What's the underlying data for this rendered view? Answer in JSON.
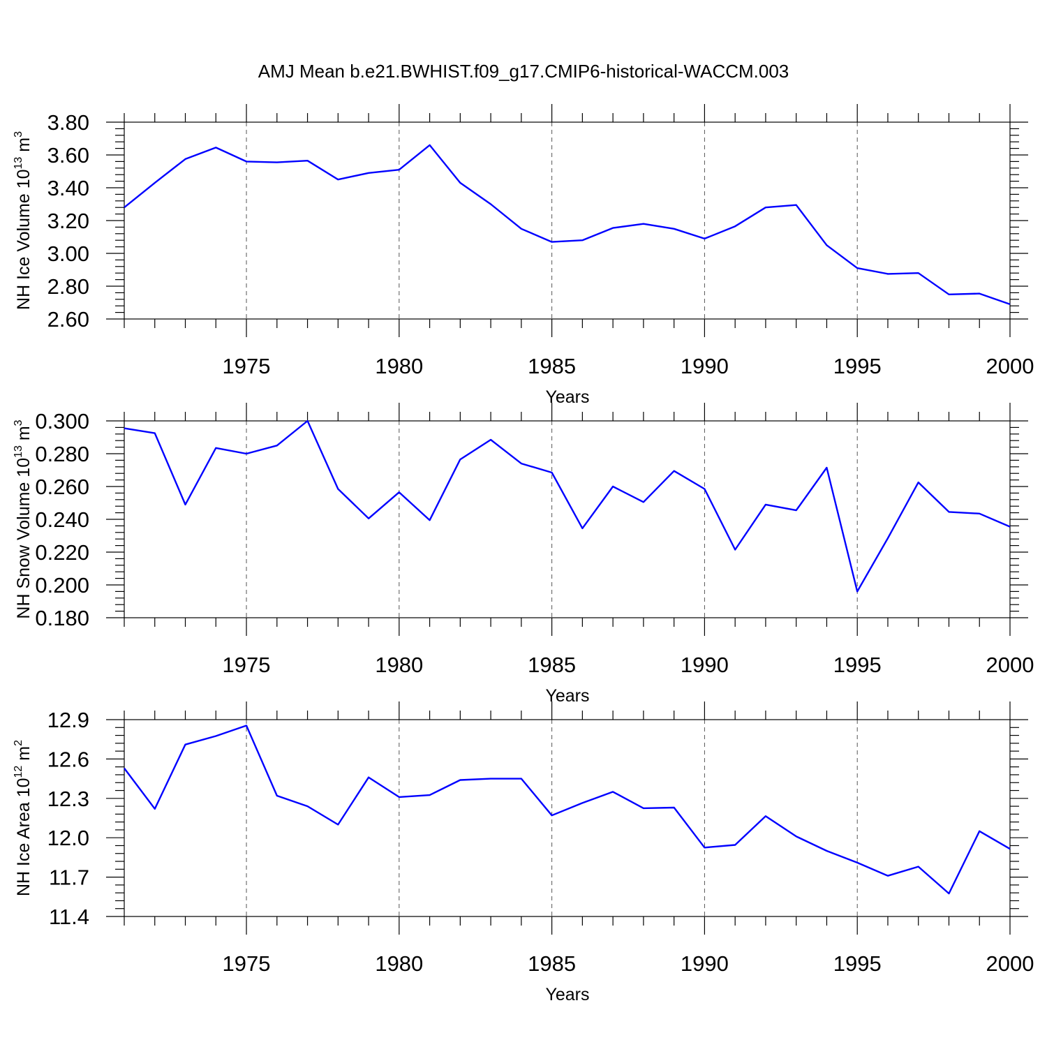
{
  "title": "AMJ Mean b.e21.BWHIST.f09_g17.CMIP6-historical-WACCM.003",
  "colors": {
    "line": "#0000ff",
    "axis": "#000000",
    "grid": "#555555"
  },
  "chart_data": [
    {
      "type": "line",
      "name": "NH Ice Volume",
      "ylabel": "NH Ice Volume 10",
      "ylabel_exp": "13",
      "ylabel_unit": "m",
      "ylabel_unit_exp": "3",
      "xlabel": "Years",
      "xlim": [
        1971,
        2000
      ],
      "ylim": [
        2.6,
        3.8
      ],
      "yticks": [
        2.6,
        2.8,
        3.0,
        3.2,
        3.4,
        3.6,
        3.8
      ],
      "ytick_labels": [
        "2.60",
        "2.80",
        "3.00",
        "3.20",
        "3.40",
        "3.60",
        "3.80"
      ],
      "xticks": [
        1975,
        1980,
        1985,
        1990,
        1995,
        2000
      ],
      "xtick_labels": [
        "1975",
        "1980",
        "1985",
        "1990",
        "1995",
        "2000"
      ],
      "x": [
        1971,
        1972,
        1973,
        1974,
        1975,
        1976,
        1977,
        1978,
        1979,
        1980,
        1981,
        1982,
        1983,
        1984,
        1985,
        1986,
        1987,
        1988,
        1989,
        1990,
        1991,
        1992,
        1993,
        1994,
        1995,
        1996,
        1997,
        1998,
        1999,
        2000
      ],
      "values": [
        3.28,
        3.43,
        3.575,
        3.645,
        3.56,
        3.555,
        3.565,
        3.45,
        3.49,
        3.51,
        3.66,
        3.43,
        3.3,
        3.15,
        3.07,
        3.08,
        3.155,
        3.18,
        3.15,
        3.09,
        3.165,
        3.28,
        3.295,
        3.05,
        2.91,
        2.875,
        2.88,
        2.75,
        2.755,
        2.69
      ]
    },
    {
      "type": "line",
      "name": "NH Snow Volume",
      "ylabel": "NH Snow Volume 10",
      "ylabel_exp": "13",
      "ylabel_unit": "m",
      "ylabel_unit_exp": "3",
      "xlabel": "Years",
      "xlim": [
        1971,
        2000
      ],
      "ylim": [
        0.18,
        0.3
      ],
      "yticks": [
        0.18,
        0.2,
        0.22,
        0.24,
        0.26,
        0.28,
        0.3
      ],
      "ytick_labels": [
        "0.180",
        "0.200",
        "0.220",
        "0.240",
        "0.260",
        "0.280",
        "0.300"
      ],
      "xticks": [
        1975,
        1980,
        1985,
        1990,
        1995,
        2000
      ],
      "xtick_labels": [
        "1975",
        "1980",
        "1985",
        "1990",
        "1995",
        "2000"
      ],
      "x": [
        1971,
        1972,
        1973,
        1974,
        1975,
        1976,
        1977,
        1978,
        1979,
        1980,
        1981,
        1982,
        1983,
        1984,
        1985,
        1986,
        1987,
        1988,
        1989,
        1990,
        1991,
        1992,
        1993,
        1994,
        1995,
        1996,
        1997,
        1998,
        1999,
        2000
      ],
      "values": [
        0.2955,
        0.2925,
        0.249,
        0.2835,
        0.28,
        0.285,
        0.3,
        0.2585,
        0.2405,
        0.2565,
        0.2395,
        0.2765,
        0.2885,
        0.274,
        0.2685,
        0.2345,
        0.26,
        0.2505,
        0.2695,
        0.2585,
        0.2215,
        0.249,
        0.2455,
        0.2715,
        0.196,
        0.2285,
        0.2625,
        0.2445,
        0.2435,
        0.2355
      ]
    },
    {
      "type": "line",
      "name": "NH Ice Area",
      "ylabel": "NH Ice Area 10",
      "ylabel_exp": "12",
      "ylabel_unit": "m",
      "ylabel_unit_exp": "2",
      "xlabel": "Years",
      "xlim": [
        1971,
        2000
      ],
      "ylim": [
        11.4,
        12.9
      ],
      "yticks": [
        11.4,
        11.7,
        12.0,
        12.3,
        12.6,
        12.9
      ],
      "ytick_labels": [
        "11.4",
        "11.7",
        "12.0",
        "12.3",
        "12.6",
        "12.9"
      ],
      "xticks": [
        1975,
        1980,
        1985,
        1990,
        1995,
        2000
      ],
      "xtick_labels": [
        "1975",
        "1980",
        "1985",
        "1990",
        "1995",
        "2000"
      ],
      "x": [
        1971,
        1972,
        1973,
        1974,
        1975,
        1976,
        1977,
        1978,
        1979,
        1980,
        1981,
        1982,
        1983,
        1984,
        1985,
        1986,
        1987,
        1988,
        1989,
        1990,
        1991,
        1992,
        1993,
        1994,
        1995,
        1996,
        1997,
        1998,
        1999,
        2000
      ],
      "values": [
        12.53,
        12.22,
        12.71,
        12.775,
        12.855,
        12.32,
        12.24,
        12.1,
        12.46,
        12.31,
        12.325,
        12.44,
        12.45,
        12.45,
        12.17,
        12.265,
        12.35,
        12.225,
        12.23,
        11.925,
        11.945,
        12.165,
        12.01,
        11.9,
        11.81,
        11.71,
        11.78,
        11.575,
        12.05,
        11.915
      ]
    }
  ]
}
